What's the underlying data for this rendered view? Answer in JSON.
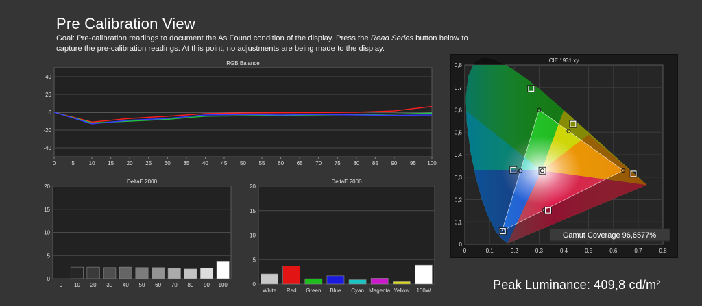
{
  "header": {
    "title": "Pre Calibration View",
    "goal_part1": "Goal: Pre-calibration readings to document the As Found condition of the display. Press the ",
    "goal_emphasis": "Read Series",
    "goal_part2": " button below to capture the pre-calibration readings. At this point, no adjustments are being made to the display."
  },
  "peak_luminance": "Peak Luminance: 409,8 cd/m²",
  "colors": {
    "background": "#353535",
    "plot_bg": "#222222",
    "red": "#ff2020",
    "green": "#20c040",
    "blue": "#3a3aff"
  },
  "chart_data": [
    {
      "type": "line",
      "title": "RGB Balance",
      "x": [
        0,
        10,
        20,
        30,
        40,
        50,
        60,
        70,
        80,
        90,
        100
      ],
      "xlim": [
        0,
        100
      ],
      "ylim": [
        -50,
        50
      ],
      "xticks": [
        "0",
        "5",
        "10",
        "15",
        "20",
        "25",
        "30",
        "35",
        "40",
        "45",
        "50",
        "55",
        "60",
        "65",
        "70",
        "75",
        "80",
        "85",
        "90",
        "95",
        "100"
      ],
      "yticks": [
        "40",
        "20",
        "0",
        "-20",
        "-40"
      ],
      "grid": true,
      "series": [
        {
          "color": "#ff2020",
          "values": [
            0,
            -11,
            -7,
            -4.5,
            -1.5,
            -0.8,
            -0.5,
            -0.3,
            0,
            1.5,
            6.5
          ]
        },
        {
          "color": "#20c040",
          "values": [
            0,
            -12,
            -10,
            -8,
            -4.5,
            -4,
            -3.5,
            -3,
            -2.5,
            -2,
            -1
          ]
        },
        {
          "color": "#3a3aff",
          "values": [
            0,
            -13,
            -9,
            -7,
            -3,
            -2.5,
            -3,
            -2.5,
            -3,
            -3.5,
            -3
          ]
        }
      ]
    },
    {
      "type": "bar",
      "title": "DeltaE 2000",
      "categories": [
        "0",
        "10",
        "20",
        "30",
        "40",
        "50",
        "60",
        "70",
        "80",
        "90",
        "100"
      ],
      "values": [
        0,
        2.5,
        2.5,
        2.4,
        2.5,
        2.4,
        2.4,
        2.3,
        2.1,
        2.3,
        3.8
      ],
      "colors": [
        "#000000",
        "#262626",
        "#3a3a3a",
        "#4f4f4f",
        "#656565",
        "#7c7c7c",
        "#939393",
        "#ababab",
        "#c3c3c3",
        "#dddddd",
        "#ffffff"
      ],
      "ylim": [
        0,
        20
      ],
      "yticks": [
        "20",
        "15",
        "10",
        "5",
        "0"
      ],
      "grid": true
    },
    {
      "type": "bar",
      "title": "DeltaE 2000",
      "categories": [
        "White",
        "Red",
        "Green",
        "Blue",
        "Cyan",
        "Magenta",
        "Yellow",
        "100W"
      ],
      "values": [
        2.1,
        3.7,
        1.1,
        1.7,
        0.9,
        1.2,
        0.5,
        3.9
      ],
      "colors": [
        "#c8c8c8",
        "#e21414",
        "#1cbf1c",
        "#1a1adf",
        "#18c4c4",
        "#cc18cc",
        "#d8d818",
        "#ffffff"
      ],
      "ylim": [
        0,
        20
      ],
      "yticks": [
        "20",
        "15",
        "10",
        "5",
        "0"
      ],
      "grid": true
    },
    {
      "type": "scatter",
      "title": "CIE 1931 xy",
      "xlim": [
        0,
        0.8
      ],
      "ylim": [
        0,
        0.8
      ],
      "xticks": [
        "0",
        "0,1",
        "0,2",
        "0,3",
        "0,4",
        "0,5",
        "0,6",
        "0,7",
        "0,8"
      ],
      "yticks": [
        "0,8",
        "0,7",
        "0,6",
        "0,5",
        "0,4",
        "0,3",
        "0,2",
        "0,1",
        "0"
      ],
      "target_gamut": [
        [
          0.64,
          0.33
        ],
        [
          0.3,
          0.6
        ],
        [
          0.15,
          0.06
        ]
      ],
      "measured_points": [
        {
          "name": "red",
          "x": 0.681,
          "y": 0.315
        },
        {
          "name": "green",
          "x": 0.268,
          "y": 0.695
        },
        {
          "name": "blue",
          "x": 0.153,
          "y": 0.059
        },
        {
          "name": "white",
          "x": 0.313,
          "y": 0.329
        },
        {
          "name": "cyan",
          "x": 0.196,
          "y": 0.332
        },
        {
          "name": "magenta",
          "x": 0.336,
          "y": 0.152
        },
        {
          "name": "yellow",
          "x": 0.437,
          "y": 0.537
        }
      ],
      "gamut_coverage": "Gamut Coverage 96,6577%"
    }
  ]
}
